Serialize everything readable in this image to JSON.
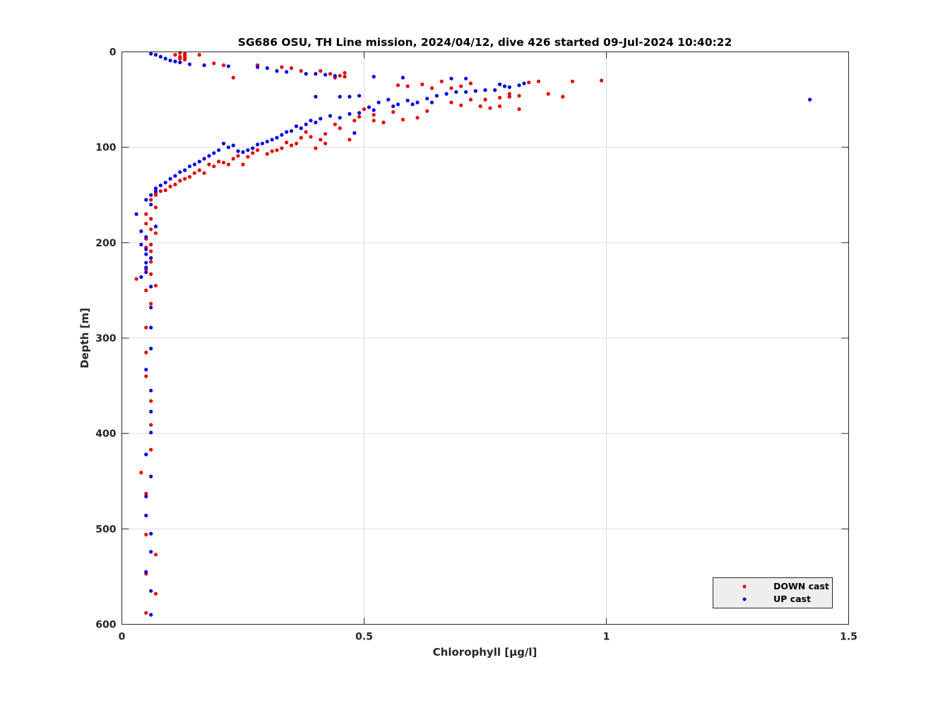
{
  "chart_data": {
    "type": "scatter",
    "title": "SG686 OSU, TH Line mission, 2024/04/12, dive 426 started 09-Jul-2024 10:40:22",
    "xlabel": "Chlorophyll [μg/l]",
    "ylabel": "Depth [m]",
    "xlim": [
      0,
      1.5
    ],
    "ylim": [
      0,
      600
    ],
    "y_reversed": true,
    "grid": true,
    "xticks": [
      "0",
      "0.5",
      "1",
      "1.5"
    ],
    "yticks": [
      "0",
      "100",
      "200",
      "300",
      "400",
      "500",
      "600"
    ],
    "legend_position": "bottom-right",
    "series": [
      {
        "name": "DOWN cast",
        "color": "#e60000",
        "points": [
          [
            0.12,
            1
          ],
          [
            0.13,
            2
          ],
          [
            0.11,
            3
          ],
          [
            0.13,
            4
          ],
          [
            0.12,
            5
          ],
          [
            0.13,
            6
          ],
          [
            0.12,
            7
          ],
          [
            0.13,
            8
          ],
          [
            0.16,
            3
          ],
          [
            0.19,
            12
          ],
          [
            0.21,
            14
          ],
          [
            0.23,
            27
          ],
          [
            0.28,
            14
          ],
          [
            0.33,
            16
          ],
          [
            0.35,
            17
          ],
          [
            0.37,
            20
          ],
          [
            0.41,
            20
          ],
          [
            0.43,
            23
          ],
          [
            0.45,
            25
          ],
          [
            0.46,
            22
          ],
          [
            0.44,
            27
          ],
          [
            0.46,
            26
          ],
          [
            0.57,
            35
          ],
          [
            0.59,
            36
          ],
          [
            0.62,
            34
          ],
          [
            0.64,
            38
          ],
          [
            0.68,
            38
          ],
          [
            0.7,
            36
          ],
          [
            0.72,
            33
          ],
          [
            0.66,
            31
          ],
          [
            0.75,
            50
          ],
          [
            0.78,
            48
          ],
          [
            0.8,
            44
          ],
          [
            0.82,
            46
          ],
          [
            0.84,
            32
          ],
          [
            0.86,
            31
          ],
          [
            0.88,
            44
          ],
          [
            0.91,
            47
          ],
          [
            0.93,
            31
          ],
          [
            0.99,
            30
          ],
          [
            0.63,
            62
          ],
          [
            0.61,
            69
          ],
          [
            0.58,
            71
          ],
          [
            0.56,
            63
          ],
          [
            0.54,
            74
          ],
          [
            0.52,
            72
          ],
          [
            0.52,
            66
          ],
          [
            0.5,
            60
          ],
          [
            0.49,
            68
          ],
          [
            0.48,
            72
          ],
          [
            0.47,
            92
          ],
          [
            0.45,
            80
          ],
          [
            0.44,
            76
          ],
          [
            0.42,
            86
          ],
          [
            0.42,
            96
          ],
          [
            0.41,
            92
          ],
          [
            0.4,
            101
          ],
          [
            0.39,
            89
          ],
          [
            0.38,
            84
          ],
          [
            0.37,
            90
          ],
          [
            0.36,
            96
          ],
          [
            0.35,
            98
          ],
          [
            0.34,
            95
          ],
          [
            0.33,
            101
          ],
          [
            0.32,
            103
          ],
          [
            0.31,
            104
          ],
          [
            0.3,
            107
          ],
          [
            0.28,
            103
          ],
          [
            0.27,
            106
          ],
          [
            0.26,
            110
          ],
          [
            0.25,
            118
          ],
          [
            0.24,
            109
          ],
          [
            0.23,
            112
          ],
          [
            0.22,
            118
          ],
          [
            0.21,
            116
          ],
          [
            0.2,
            115
          ],
          [
            0.19,
            120
          ],
          [
            0.18,
            118
          ],
          [
            0.17,
            127
          ],
          [
            0.16,
            124
          ],
          [
            0.15,
            127
          ],
          [
            0.14,
            131
          ],
          [
            0.13,
            133
          ],
          [
            0.12,
            135
          ],
          [
            0.11,
            139
          ],
          [
            0.1,
            141
          ],
          [
            0.09,
            145
          ],
          [
            0.08,
            146
          ],
          [
            0.07,
            148
          ],
          [
            0.07,
            150
          ],
          [
            0.82,
            60
          ],
          [
            0.78,
            57
          ],
          [
            0.76,
            59
          ],
          [
            0.74,
            57
          ],
          [
            0.72,
            50
          ],
          [
            0.7,
            56
          ],
          [
            0.68,
            53
          ],
          [
            0.8,
            47
          ],
          [
            0.06,
            155
          ],
          [
            0.07,
            163
          ],
          [
            0.05,
            170
          ],
          [
            0.06,
            175
          ],
          [
            0.05,
            180
          ],
          [
            0.06,
            186
          ],
          [
            0.07,
            190
          ],
          [
            0.05,
            196
          ],
          [
            0.06,
            202
          ],
          [
            0.05,
            205
          ],
          [
            0.06,
            209
          ],
          [
            0.06,
            220
          ],
          [
            0.05,
            228
          ],
          [
            0.06,
            233
          ],
          [
            0.03,
            238
          ],
          [
            0.07,
            245
          ],
          [
            0.05,
            250
          ],
          [
            0.06,
            264
          ],
          [
            0.05,
            289
          ],
          [
            0.05,
            315
          ],
          [
            0.05,
            340
          ],
          [
            0.06,
            366
          ],
          [
            0.06,
            391
          ],
          [
            0.06,
            417
          ],
          [
            0.04,
            441
          ],
          [
            0.05,
            463
          ],
          [
            0.05,
            506
          ],
          [
            0.07,
            527
          ],
          [
            0.05,
            547
          ],
          [
            0.07,
            568
          ],
          [
            0.05,
            588
          ]
        ]
      },
      {
        "name": "UP cast",
        "color": "#0000e6",
        "points": [
          [
            0.06,
            2
          ],
          [
            0.07,
            3
          ],
          [
            0.08,
            5
          ],
          [
            0.09,
            7
          ],
          [
            0.1,
            9
          ],
          [
            0.11,
            10
          ],
          [
            0.12,
            11
          ],
          [
            0.14,
            13
          ],
          [
            0.17,
            14
          ],
          [
            0.22,
            15
          ],
          [
            0.28,
            16
          ],
          [
            0.3,
            17
          ],
          [
            0.32,
            20
          ],
          [
            0.34,
            21
          ],
          [
            0.38,
            23
          ],
          [
            0.4,
            23
          ],
          [
            0.42,
            24
          ],
          [
            0.44,
            25
          ],
          [
            0.52,
            26
          ],
          [
            0.58,
            27
          ],
          [
            0.68,
            28
          ],
          [
            0.71,
            28
          ],
          [
            0.78,
            34
          ],
          [
            0.79,
            36
          ],
          [
            0.8,
            37
          ],
          [
            0.82,
            35
          ],
          [
            0.83,
            33
          ],
          [
            1.42,
            50
          ],
          [
            0.4,
            47
          ],
          [
            0.45,
            47
          ],
          [
            0.47,
            47
          ],
          [
            0.49,
            46
          ],
          [
            0.51,
            58
          ],
          [
            0.53,
            53
          ],
          [
            0.55,
            50
          ],
          [
            0.57,
            55
          ],
          [
            0.59,
            51
          ],
          [
            0.61,
            53
          ],
          [
            0.63,
            49
          ],
          [
            0.65,
            46
          ],
          [
            0.67,
            44
          ],
          [
            0.69,
            42
          ],
          [
            0.71,
            42
          ],
          [
            0.73,
            41
          ],
          [
            0.75,
            40
          ],
          [
            0.77,
            40
          ],
          [
            0.49,
            64
          ],
          [
            0.47,
            65
          ],
          [
            0.45,
            69
          ],
          [
            0.43,
            67
          ],
          [
            0.41,
            70
          ],
          [
            0.4,
            74
          ],
          [
            0.39,
            72
          ],
          [
            0.38,
            76
          ],
          [
            0.37,
            80
          ],
          [
            0.36,
            78
          ],
          [
            0.35,
            83
          ],
          [
            0.34,
            84
          ],
          [
            0.33,
            87
          ],
          [
            0.32,
            90
          ],
          [
            0.31,
            92
          ],
          [
            0.3,
            94
          ],
          [
            0.29,
            96
          ],
          [
            0.28,
            97
          ],
          [
            0.27,
            101
          ],
          [
            0.26,
            103
          ],
          [
            0.25,
            105
          ],
          [
            0.24,
            104
          ],
          [
            0.23,
            98
          ],
          [
            0.22,
            100
          ],
          [
            0.21,
            96
          ],
          [
            0.2,
            103
          ],
          [
            0.19,
            106
          ],
          [
            0.18,
            109
          ],
          [
            0.17,
            112
          ],
          [
            0.16,
            115
          ],
          [
            0.15,
            118
          ],
          [
            0.14,
            120
          ],
          [
            0.13,
            124
          ],
          [
            0.12,
            126
          ],
          [
            0.11,
            130
          ],
          [
            0.1,
            133
          ],
          [
            0.09,
            137
          ],
          [
            0.08,
            140
          ],
          [
            0.07,
            143
          ],
          [
            0.07,
            146
          ],
          [
            0.06,
            150
          ],
          [
            0.48,
            85
          ],
          [
            0.52,
            61
          ],
          [
            0.56,
            57
          ],
          [
            0.6,
            55
          ],
          [
            0.64,
            53
          ],
          [
            0.05,
            155
          ],
          [
            0.06,
            160
          ],
          [
            0.07,
            183
          ],
          [
            0.03,
            170
          ],
          [
            0.04,
            188
          ],
          [
            0.05,
            194
          ],
          [
            0.04,
            202
          ],
          [
            0.05,
            207
          ],
          [
            0.05,
            212
          ],
          [
            0.06,
            216
          ],
          [
            0.05,
            221
          ],
          [
            0.05,
            226
          ],
          [
            0.05,
            231
          ],
          [
            0.04,
            236
          ],
          [
            0.06,
            246
          ],
          [
            0.06,
            268
          ],
          [
            0.06,
            289
          ],
          [
            0.06,
            311
          ],
          [
            0.05,
            333
          ],
          [
            0.06,
            355
          ],
          [
            0.06,
            377
          ],
          [
            0.06,
            399
          ],
          [
            0.05,
            422
          ],
          [
            0.06,
            445
          ],
          [
            0.05,
            466
          ],
          [
            0.05,
            486
          ],
          [
            0.06,
            505
          ],
          [
            0.06,
            524
          ],
          [
            0.05,
            545
          ],
          [
            0.06,
            565
          ],
          [
            0.06,
            590
          ]
        ]
      }
    ]
  }
}
